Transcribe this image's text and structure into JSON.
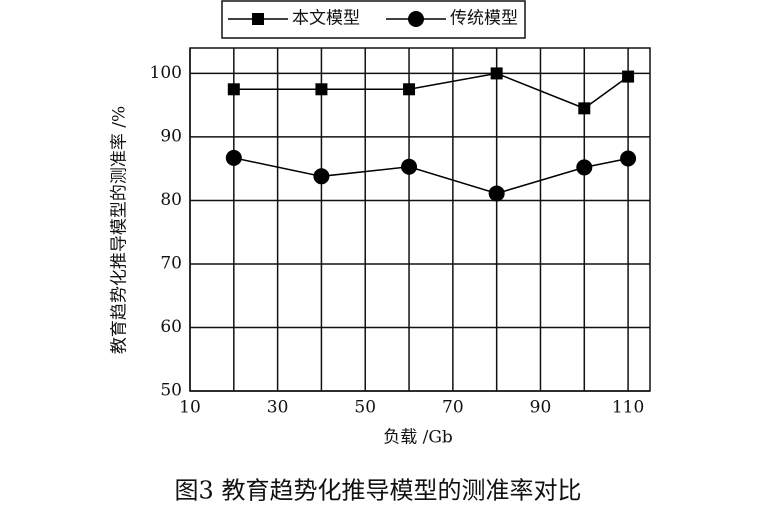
{
  "chart_data": {
    "type": "line",
    "y_label": "教育趋势化推导模型的测准率 /%",
    "x_label": "负载 /Gb",
    "caption": "图3   教育趋势化推导模型的测准率对比",
    "x": [
      20,
      40,
      60,
      80,
      100,
      110
    ],
    "series": [
      {
        "name": "本文模型",
        "color": "#000000",
        "marker": "square",
        "values": [
          97.5,
          97.5,
          97.5,
          100,
          94.5,
          99.5
        ]
      },
      {
        "name": "传统模型",
        "color": "#000000",
        "marker": "circle",
        "values": [
          86.7,
          83.8,
          85.3,
          81.1,
          85.2,
          86.6
        ]
      }
    ],
    "xlim": [
      10,
      115
    ],
    "xticks": [
      10,
      30,
      50,
      70,
      90,
      110
    ],
    "ylim": [
      50,
      104
    ],
    "yticks": [
      50,
      60,
      70,
      80,
      90,
      100
    ],
    "grid": true,
    "legend": "top"
  }
}
